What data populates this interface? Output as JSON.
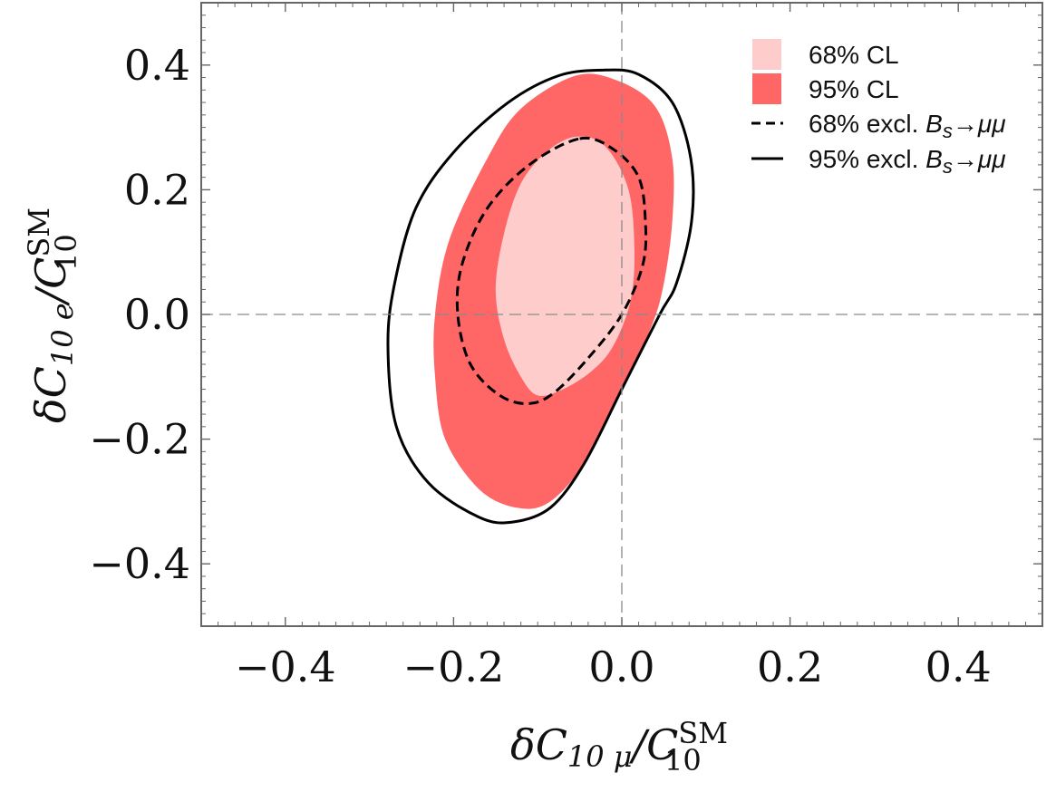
{
  "chart_data": {
    "type": "contour",
    "xlabel": {
      "main": "δC",
      "sub": "10 μ",
      "slash": "/C",
      "sup": "SM",
      "sub2": "10"
    },
    "ylabel": {
      "main": "δC",
      "sub": "10 e",
      "slash": "/C",
      "sup": "SM",
      "sub2": "10"
    },
    "xlim": [
      -0.5,
      0.5
    ],
    "ylim": [
      -0.5,
      0.5
    ],
    "xticks": [
      -0.4,
      -0.2,
      0.0,
      0.2,
      0.4
    ],
    "yticks": [
      -0.4,
      -0.2,
      0.0,
      0.2,
      0.4
    ],
    "xtick_labels": [
      "−0.4",
      "−0.2",
      "0.0",
      "0.2",
      "0.4"
    ],
    "ytick_labels": [
      "−0.4",
      "−0.2",
      "0.0",
      "0.2",
      "0.4"
    ],
    "reference_lines": {
      "x": 0.0,
      "y": 0.0
    },
    "legend_position": "top-right",
    "series": [
      {
        "name": "95% CL",
        "style": "filled",
        "color": "#ff6666",
        "points": [
          [
            -0.055,
            0.383
          ],
          [
            -0.005,
            0.375
          ],
          [
            0.04,
            0.333
          ],
          [
            0.06,
            0.25
          ],
          [
            0.06,
            0.15
          ],
          [
            0.05,
            0.05
          ],
          [
            0.035,
            -0.02
          ],
          [
            0.0,
            -0.12
          ],
          [
            -0.04,
            -0.23
          ],
          [
            -0.085,
            -0.3
          ],
          [
            -0.125,
            -0.31
          ],
          [
            -0.17,
            -0.28
          ],
          [
            -0.21,
            -0.2
          ],
          [
            -0.222,
            -0.1
          ],
          [
            -0.222,
            0.0
          ],
          [
            -0.205,
            0.12
          ],
          [
            -0.16,
            0.25
          ],
          [
            -0.12,
            0.33
          ]
        ]
      },
      {
        "name": "68% CL",
        "style": "filled",
        "color": "#ffcccc",
        "points": [
          [
            -0.055,
            0.285
          ],
          [
            -0.02,
            0.27
          ],
          [
            0.008,
            0.2
          ],
          [
            0.015,
            0.1
          ],
          [
            0.01,
            0.02
          ],
          [
            -0.01,
            -0.05
          ],
          [
            -0.035,
            -0.09
          ],
          [
            -0.07,
            -0.12
          ],
          [
            -0.1,
            -0.13
          ],
          [
            -0.12,
            -0.1
          ],
          [
            -0.14,
            -0.04
          ],
          [
            -0.15,
            0.04
          ],
          [
            -0.14,
            0.13
          ],
          [
            -0.12,
            0.21
          ],
          [
            -0.09,
            0.26
          ]
        ]
      },
      {
        "name": "68% excl. B_s→μμ",
        "style": "dashed",
        "color": "#000000",
        "points": [
          [
            -0.05,
            0.282
          ],
          [
            -0.01,
            0.265
          ],
          [
            0.02,
            0.22
          ],
          [
            0.028,
            0.15
          ],
          [
            0.025,
            0.08
          ],
          [
            0.0,
            0.0
          ],
          [
            -0.04,
            -0.07
          ],
          [
            -0.08,
            -0.125
          ],
          [
            -0.11,
            -0.143
          ],
          [
            -0.145,
            -0.13
          ],
          [
            -0.18,
            -0.08
          ],
          [
            -0.195,
            0.0
          ],
          [
            -0.19,
            0.08
          ],
          [
            -0.16,
            0.17
          ],
          [
            -0.11,
            0.24
          ]
        ]
      },
      {
        "name": "95% excl. B_s→μμ",
        "style": "solid",
        "color": "#000000",
        "points": [
          [
            -0.02,
            0.392
          ],
          [
            0.02,
            0.385
          ],
          [
            0.06,
            0.34
          ],
          [
            0.082,
            0.25
          ],
          [
            0.083,
            0.15
          ],
          [
            0.065,
            0.05
          ],
          [
            0.045,
            0.0
          ],
          [
            0.0,
            -0.12
          ],
          [
            -0.045,
            -0.24
          ],
          [
            -0.085,
            -0.31
          ],
          [
            -0.13,
            -0.333
          ],
          [
            -0.17,
            -0.325
          ],
          [
            -0.23,
            -0.27
          ],
          [
            -0.268,
            -0.18
          ],
          [
            -0.278,
            -0.05
          ],
          [
            -0.27,
            0.05
          ],
          [
            -0.245,
            0.17
          ],
          [
            -0.2,
            0.26
          ],
          [
            -0.135,
            0.34
          ],
          [
            -0.075,
            0.383
          ]
        ]
      }
    ],
    "legend": [
      {
        "label": "68% CL",
        "prefix": "68% CL",
        "symbol": "",
        "suffix": "",
        "kind": "swatch",
        "color": "#ffcccc"
      },
      {
        "label": "95% CL",
        "prefix": "95% CL",
        "symbol": "",
        "suffix": "",
        "kind": "swatch",
        "color": "#ff6666"
      },
      {
        "label": "68% excl. B_s→μμ",
        "prefix": "68% excl. ",
        "symbol": "B",
        "symbol_sub": "s",
        "suffix": "→μμ",
        "kind": "dashed",
        "color": "#000000"
      },
      {
        "label": "95% excl. B_s→μμ",
        "prefix": "95% excl. ",
        "symbol": "B",
        "symbol_sub": "s",
        "suffix": "→μμ",
        "kind": "solid",
        "color": "#000000"
      }
    ]
  }
}
